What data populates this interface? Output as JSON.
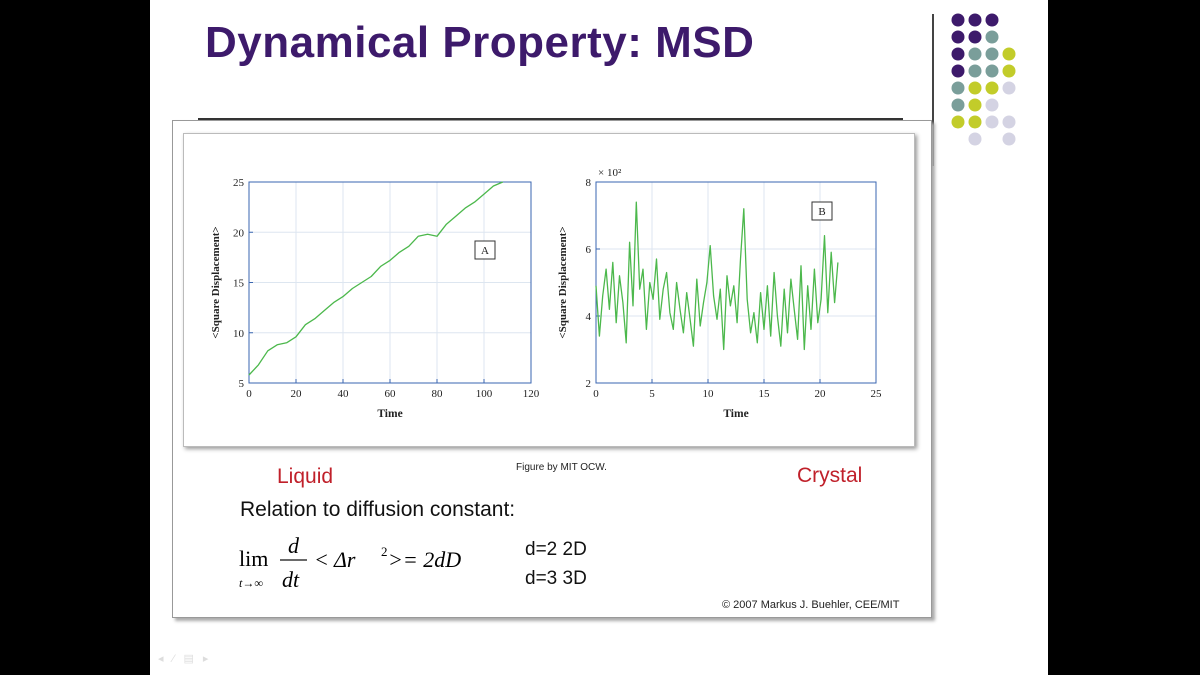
{
  "slide": {
    "title": "Dynamical Property: MSD",
    "liquid_label": "Liquid",
    "crystal_label": "Crystal",
    "figure_credit": "Figure by MIT OCW.",
    "relation_text": "Relation to diffusion constant:",
    "formula": {
      "lim": "lim",
      "sub": "t→∞",
      "num": "d",
      "den": "dt",
      "body": "< Δr",
      "sup": "2",
      "rhs": " >= 2dD"
    },
    "dim_2d": "d=2  2D",
    "dim_3d": "d=3  3D",
    "copyright": "© 2007 Markus J. Buehler, CEE/MIT",
    "accent_title": "#3d1a6b",
    "accent_label": "#c0202a"
  },
  "decor": {
    "dot_colors": [
      "#3d1a6b",
      "#7a9e9a",
      "#c2cc2a",
      "#d4d3e3"
    ]
  },
  "chart_data": [
    {
      "type": "line",
      "title": "",
      "xlabel": "Time",
      "ylabel": "<Square Displacement>",
      "xlim": [
        0,
        120
      ],
      "ylim": [
        5,
        25
      ],
      "xticks": [
        0,
        20,
        40,
        60,
        80,
        100,
        120
      ],
      "yticks": [
        5,
        10,
        15,
        20,
        25
      ],
      "grid": true,
      "panel_label": "A",
      "line_color": "#4cb84c",
      "series": [
        {
          "x": [
            0,
            4,
            8,
            12,
            16,
            20,
            24,
            28,
            32,
            36,
            40,
            44,
            48,
            52,
            56,
            60,
            64,
            68,
            72,
            76,
            80,
            84,
            88,
            92,
            96,
            100,
            104,
            108
          ],
          "values": [
            5.8,
            6.8,
            8.2,
            8.8,
            9.0,
            9.6,
            10.8,
            11.4,
            12.2,
            13.0,
            13.6,
            14.4,
            15.0,
            15.6,
            16.6,
            17.2,
            18.0,
            18.6,
            19.6,
            19.8,
            19.6,
            20.8,
            21.6,
            22.4,
            23.0,
            23.8,
            24.6,
            25.0
          ]
        }
      ]
    },
    {
      "type": "line",
      "title": "",
      "xlabel": "Time",
      "ylabel": "<Square Displacement>",
      "y_multiplier": "× 10²",
      "xlim": [
        0,
        25
      ],
      "ylim": [
        2,
        8
      ],
      "xticks": [
        0,
        5,
        10,
        15,
        20,
        25
      ],
      "yticks": [
        2,
        4,
        6,
        8
      ],
      "grid": true,
      "panel_label": "B",
      "line_color": "#4cb84c",
      "series": [
        {
          "x": [
            0,
            0.3,
            0.6,
            0.9,
            1.2,
            1.5,
            1.8,
            2.1,
            2.4,
            2.7,
            3.0,
            3.3,
            3.6,
            3.9,
            4.2,
            4.5,
            4.8,
            5.1,
            5.4,
            5.7,
            6.0,
            6.3,
            6.6,
            6.9,
            7.2,
            7.5,
            7.8,
            8.1,
            8.4,
            8.7,
            9.0,
            9.3,
            9.6,
            9.9,
            10.2,
            10.5,
            10.8,
            11.1,
            11.4,
            11.7,
            12.0,
            12.3,
            12.6,
            12.9,
            13.2,
            13.5,
            13.8,
            14.1,
            14.4,
            14.7,
            15.0,
            15.3,
            15.6,
            15.9,
            16.2,
            16.5,
            16.8,
            17.1,
            17.4,
            17.7,
            18.0,
            18.3,
            18.6,
            18.9,
            19.2,
            19.5,
            19.8,
            20.1,
            20.4,
            20.7,
            21.0,
            21.3,
            21.6
          ],
          "values": [
            4.9,
            3.4,
            4.6,
            5.4,
            4.2,
            5.6,
            3.8,
            5.2,
            4.4,
            3.2,
            6.2,
            4.3,
            7.4,
            4.8,
            5.4,
            3.6,
            5.0,
            4.5,
            5.7,
            3.9,
            4.8,
            5.3,
            4.1,
            3.6,
            5.0,
            4.2,
            3.5,
            4.7,
            3.9,
            3.1,
            5.1,
            3.7,
            4.4,
            5.0,
            6.1,
            4.6,
            3.9,
            4.8,
            3.0,
            5.2,
            4.3,
            4.9,
            3.8,
            5.7,
            7.2,
            4.5,
            3.5,
            4.1,
            3.2,
            4.7,
            3.6,
            4.9,
            3.4,
            5.3,
            4.0,
            3.1,
            4.8,
            3.5,
            5.1,
            4.2,
            3.3,
            5.5,
            3.0,
            4.9,
            3.6,
            5.4,
            3.8,
            4.5,
            6.4,
            4.1,
            5.9,
            4.4,
            5.6
          ]
        }
      ]
    }
  ]
}
